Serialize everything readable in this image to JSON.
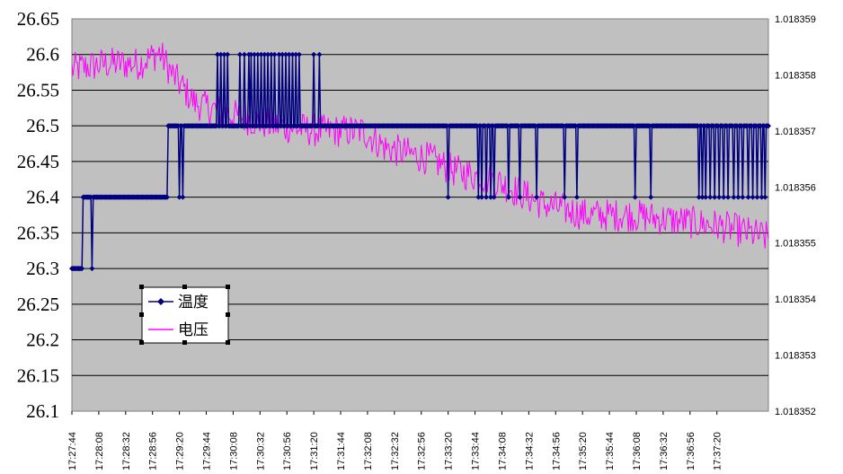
{
  "chart_data": {
    "type": "line",
    "title": "",
    "xlabel": "",
    "ylabel": "",
    "y2label": "",
    "grid": true,
    "legend_position": "left-middle",
    "x_tick_labels": [
      "17:27:44",
      "17:28:08",
      "17:28:32",
      "17:28:56",
      "17:29:20",
      "17:29:44",
      "17:30:08",
      "17:30:32",
      "17:30:56",
      "17:31:20",
      "17:31:44",
      "17:32:08",
      "17:32:32",
      "17:32:56",
      "17:33:20",
      "17:33:44",
      "17:34:08",
      "17:34:32",
      "17:34:56",
      "17:35:20",
      "17:35:44",
      "17:36:08",
      "17:36:32",
      "17:36:56",
      "17:37:20"
    ],
    "y_left": {
      "min": 26.1,
      "max": 26.65,
      "tick_values": [
        26.1,
        26.15,
        26.2,
        26.25,
        26.3,
        26.35,
        26.4,
        26.45,
        26.5,
        26.55,
        26.6,
        26.65
      ],
      "tick_labels": [
        "26.1",
        "26.15",
        "26.2",
        "26.25",
        "26.3",
        "26.35",
        "26.4",
        "26.45",
        "26.5",
        "26.55",
        "26.6",
        "26.65"
      ]
    },
    "y_right": {
      "min": 1.018352,
      "max": 1.018359,
      "tick_values": [
        1.018352,
        1.018353,
        1.018354,
        1.018355,
        1.018356,
        1.018357,
        1.018358,
        1.018359
      ],
      "tick_labels": [
        "1.018352",
        "1.018353",
        "1.018354",
        "1.018355",
        "1.018356",
        "1.018357",
        "1.018358",
        "1.018359"
      ]
    },
    "x_range_seconds_after_start": [
      0,
      622
    ],
    "series": [
      {
        "name": "温度",
        "axis": "left",
        "color": "#000080",
        "marker": "diamond",
        "description_note": "",
        "segments": [
          {
            "from_s": 0,
            "to_s": 10,
            "value": 26.3
          },
          {
            "from_s": 10,
            "to_s": 18,
            "value": 26.4
          },
          {
            "from_s": 18,
            "to_s": 19,
            "value": 26.3
          },
          {
            "from_s": 19,
            "to_s": 86,
            "value": 26.4
          },
          {
            "from_s": 86,
            "to_s": 96,
            "value": 26.5
          },
          {
            "from_s": 96,
            "to_s": 97,
            "value": 26.4
          },
          {
            "from_s": 97,
            "to_s": 99,
            "value": 26.5
          },
          {
            "from_s": 99,
            "to_s": 100,
            "value": 26.4
          },
          {
            "from_s": 100,
            "to_s": 128,
            "value": 26.5
          },
          {
            "from_s": 128,
            "to_s": 230,
            "value": 26.5
          },
          {
            "from_s": 230,
            "to_s": 622,
            "value": 26.5
          }
        ],
        "spikes_up_to_26_6_at_s": [
          130,
          133,
          136,
          139,
          150,
          154,
          158,
          160,
          163,
          166,
          169,
          172,
          175,
          178,
          181,
          185,
          188,
          191,
          194,
          197,
          200,
          203,
          216,
          221
        ],
        "dips_down_to_26_4_at_s": [
          336,
          363,
          366,
          370,
          374,
          377,
          390,
          400,
          415,
          440,
          451,
          503,
          517,
          560,
          563,
          566,
          570,
          574,
          578,
          582,
          586,
          591,
          595,
          599,
          604,
          608,
          612,
          616,
          619
        ]
      },
      {
        "name": "电压",
        "axis": "right",
        "color": "#FF00FF",
        "marker": "none",
        "trend_points": [
          {
            "s": 0,
            "value": 1.0183581
          },
          {
            "s": 30,
            "value": 1.0183582
          },
          {
            "s": 60,
            "value": 1.0183582
          },
          {
            "s": 78,
            "value": 1.0183584
          },
          {
            "s": 90,
            "value": 1.018358
          },
          {
            "s": 110,
            "value": 1.0183575
          },
          {
            "s": 140,
            "value": 1.0183573
          },
          {
            "s": 180,
            "value": 1.0183571
          },
          {
            "s": 220,
            "value": 1.018357
          },
          {
            "s": 260,
            "value": 1.018357
          },
          {
            "s": 280,
            "value": 1.0183567
          },
          {
            "s": 320,
            "value": 1.0183565
          },
          {
            "s": 340,
            "value": 1.0183563
          },
          {
            "s": 380,
            "value": 1.0183561
          },
          {
            "s": 420,
            "value": 1.0183557
          },
          {
            "s": 460,
            "value": 1.0183555
          },
          {
            "s": 500,
            "value": 1.0183555
          },
          {
            "s": 540,
            "value": 1.0183554
          },
          {
            "s": 580,
            "value": 1.0183553
          },
          {
            "s": 620,
            "value": 1.0183551
          }
        ],
        "noise_amplitude": 3e-07
      }
    ]
  },
  "legend": {
    "items": [
      {
        "label": "温度",
        "color": "#000080",
        "marker": "diamond"
      },
      {
        "label": "电压",
        "color": "#FF00FF",
        "marker": "none"
      }
    ]
  },
  "colors": {
    "plot_background": "#C0C0C0",
    "gridline": "#000000",
    "temperature": "#000080",
    "voltage": "#FF00FF"
  }
}
